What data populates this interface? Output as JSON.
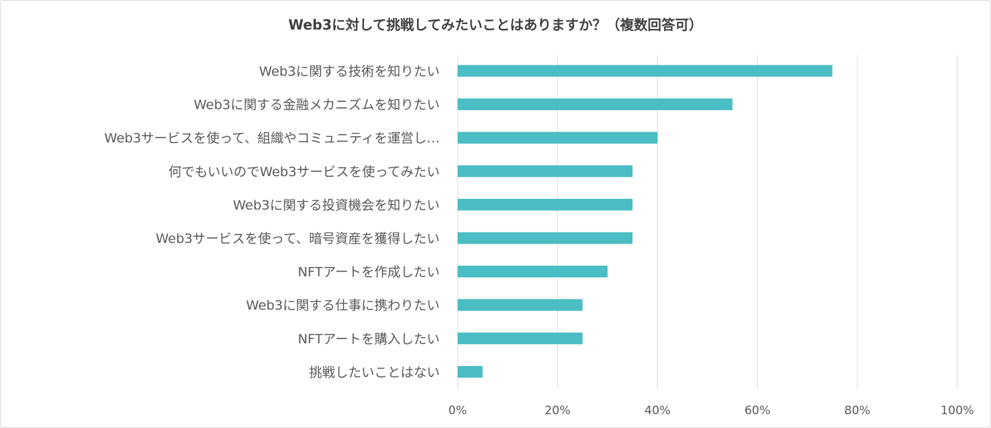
{
  "chart_data": {
    "type": "bar",
    "orientation": "horizontal",
    "title": "Web3に対して挑戦してみたいことはありますか？（複数回答可）",
    "categories": [
      "Web3に関する技術を知りたい",
      "Web3に関する金融メカニズムを知りたい",
      "Web3サービスを使って、組織やコミュニティを運営し…",
      "何でもいいのでWeb3サービスを使ってみたい",
      "Web3に関する投資機会を知りたい",
      "Web3サービスを使って、暗号資産を獲得したい",
      "NFTアートを作成したい",
      "Web3に関する仕事に携わりたい",
      "NFTアートを購入したい",
      "挑戦したいことはない"
    ],
    "values": [
      75,
      55,
      40,
      35,
      35,
      35,
      30,
      25,
      25,
      5
    ],
    "unit": "%",
    "xlim": [
      0,
      100
    ],
    "xticks": [
      0,
      20,
      40,
      60,
      80,
      100
    ],
    "xtick_labels": [
      "0%",
      "20%",
      "40%",
      "60%",
      "80%",
      "100%"
    ],
    "grid": true,
    "legend": "none",
    "bar_color": "#4bbdc4",
    "grid_color": "#d9d9d9"
  }
}
